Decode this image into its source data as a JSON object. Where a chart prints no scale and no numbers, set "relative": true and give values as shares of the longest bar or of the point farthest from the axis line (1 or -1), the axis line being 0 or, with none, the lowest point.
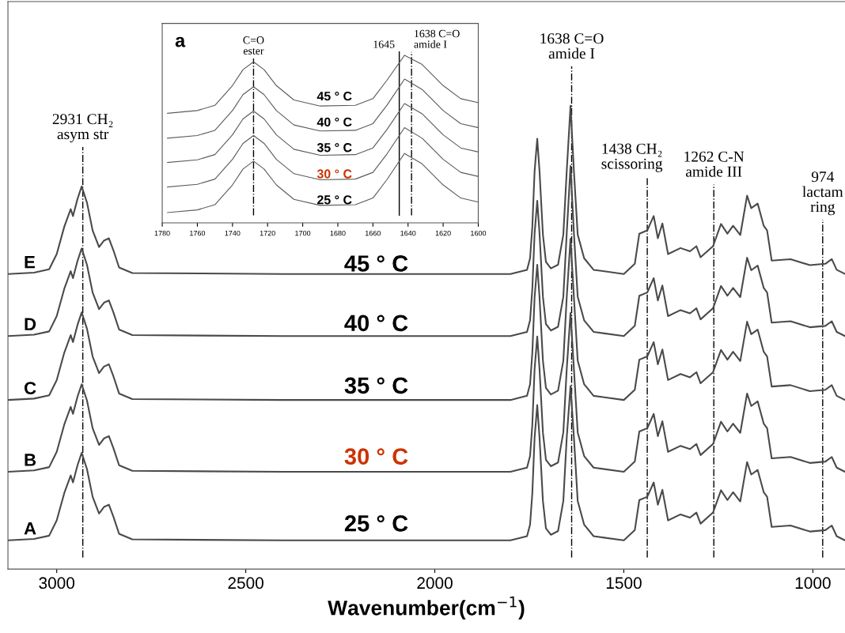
{
  "chart_data": [
    {
      "type": "line",
      "relative": true,
      "xlabel": "Wavenumber(cm$^{−1}$)",
      "xlim": [
        3129,
        915
      ],
      "xticks": [
        3000,
        2500,
        2000,
        1500,
        1000
      ],
      "tick_labels": "x",
      "x": [
        3129,
        3060,
        3020,
        3000,
        2980,
        2963,
        2957,
        2945,
        2934,
        2920,
        2905,
        2888,
        2875,
        2862,
        2850,
        2835,
        2800,
        2400,
        1800,
        1756,
        1748,
        1742,
        1736,
        1729,
        1723,
        1714,
        1706,
        1693,
        1674,
        1660,
        1651,
        1641,
        1632,
        1622,
        1605,
        1580,
        1500,
        1471,
        1459,
        1438,
        1421,
        1410,
        1398,
        1383,
        1350,
        1325,
        1308,
        1297,
        1264,
        1243,
        1226,
        1211,
        1192,
        1174,
        1163,
        1146,
        1130,
        1121,
        1109,
        1059,
        1008,
        967,
        950,
        937,
        915
      ],
      "series": [
        {
          "name": "E",
          "color": "#4a4a4a",
          "values": [
            0.637,
            0.64,
            0.647,
            0.68,
            0.739,
            0.777,
            0.762,
            0.799,
            0.826,
            0.791,
            0.731,
            0.695,
            0.709,
            0.714,
            0.688,
            0.651,
            0.639,
            0.637,
            0.637,
            0.646,
            0.671,
            0.739,
            0.859,
            0.929,
            0.859,
            0.722,
            0.663,
            0.649,
            0.657,
            0.722,
            0.859,
            1.0,
            0.859,
            0.722,
            0.671,
            0.646,
            0.637,
            0.659,
            0.724,
            0.731,
            0.762,
            0.714,
            0.746,
            0.68,
            0.693,
            0.686,
            0.697,
            0.673,
            0.697,
            0.745,
            0.724,
            0.741,
            0.721,
            0.806,
            0.779,
            0.789,
            0.741,
            0.731,
            0.666,
            0.669,
            0.656,
            0.659,
            0.669,
            0.646,
            0.637
          ]
        },
        {
          "name": "D",
          "color": "#4a4a4a",
          "values": [
            0.503,
            0.506,
            0.513,
            0.546,
            0.605,
            0.643,
            0.628,
            0.665,
            0.692,
            0.657,
            0.597,
            0.561,
            0.575,
            0.58,
            0.554,
            0.517,
            0.505,
            0.503,
            0.503,
            0.512,
            0.537,
            0.605,
            0.725,
            0.795,
            0.725,
            0.588,
            0.529,
            0.515,
            0.523,
            0.588,
            0.725,
            0.87,
            0.725,
            0.588,
            0.537,
            0.512,
            0.503,
            0.525,
            0.59,
            0.597,
            0.628,
            0.58,
            0.612,
            0.546,
            0.559,
            0.552,
            0.563,
            0.539,
            0.563,
            0.611,
            0.59,
            0.607,
            0.587,
            0.672,
            0.645,
            0.655,
            0.607,
            0.597,
            0.532,
            0.535,
            0.522,
            0.525,
            0.535,
            0.512,
            0.503
          ]
        },
        {
          "name": "C",
          "color": "#4a4a4a",
          "values": [
            0.365,
            0.368,
            0.375,
            0.408,
            0.467,
            0.505,
            0.49,
            0.527,
            0.554,
            0.519,
            0.459,
            0.423,
            0.437,
            0.442,
            0.416,
            0.379,
            0.367,
            0.365,
            0.365,
            0.374,
            0.399,
            0.467,
            0.587,
            0.657,
            0.587,
            0.45,
            0.391,
            0.377,
            0.385,
            0.45,
            0.587,
            0.713,
            0.587,
            0.45,
            0.399,
            0.374,
            0.365,
            0.387,
            0.452,
            0.459,
            0.49,
            0.442,
            0.474,
            0.408,
            0.421,
            0.414,
            0.425,
            0.401,
            0.425,
            0.473,
            0.452,
            0.469,
            0.449,
            0.534,
            0.507,
            0.517,
            0.469,
            0.459,
            0.394,
            0.397,
            0.384,
            0.387,
            0.397,
            0.374,
            0.365
          ]
        },
        {
          "name": "B",
          "color": "#4a4a4a",
          "values": [
            0.21,
            0.213,
            0.22,
            0.253,
            0.312,
            0.35,
            0.335,
            0.372,
            0.399,
            0.364,
            0.304,
            0.268,
            0.282,
            0.287,
            0.261,
            0.224,
            0.212,
            0.21,
            0.21,
            0.219,
            0.244,
            0.312,
            0.432,
            0.502,
            0.432,
            0.295,
            0.236,
            0.222,
            0.23,
            0.295,
            0.432,
            0.553,
            0.432,
            0.295,
            0.244,
            0.219,
            0.21,
            0.232,
            0.297,
            0.304,
            0.335,
            0.287,
            0.319,
            0.253,
            0.266,
            0.259,
            0.27,
            0.246,
            0.27,
            0.318,
            0.297,
            0.314,
            0.294,
            0.379,
            0.352,
            0.362,
            0.314,
            0.304,
            0.239,
            0.242,
            0.229,
            0.232,
            0.242,
            0.219,
            0.21
          ]
        },
        {
          "name": "A",
          "color": "#4a4a4a",
          "values": [
            0.062,
            0.065,
            0.072,
            0.105,
            0.164,
            0.202,
            0.187,
            0.224,
            0.251,
            0.216,
            0.156,
            0.12,
            0.134,
            0.139,
            0.113,
            0.076,
            0.064,
            0.062,
            0.062,
            0.071,
            0.096,
            0.164,
            0.284,
            0.354,
            0.284,
            0.147,
            0.088,
            0.074,
            0.082,
            0.147,
            0.284,
            0.395,
            0.284,
            0.147,
            0.096,
            0.071,
            0.062,
            0.084,
            0.149,
            0.156,
            0.187,
            0.139,
            0.171,
            0.105,
            0.118,
            0.111,
            0.122,
            0.098,
            0.122,
            0.17,
            0.149,
            0.166,
            0.146,
            0.231,
            0.204,
            0.214,
            0.166,
            0.156,
            0.091,
            0.094,
            0.081,
            0.084,
            0.094,
            0.071,
            0.062
          ]
        }
      ],
      "ref_lines": [
        {
          "axis": "x",
          "value": 2931,
          "label": "2931 CH₂\nasym str",
          "line_style": "dashdot",
          "color": "#000000"
        },
        {
          "axis": "x",
          "value": 1638,
          "label": "1638 C=O\namide I",
          "line_style": "dashdot",
          "color": "#000000"
        },
        {
          "axis": "x",
          "value": 1438,
          "label": "1438 CH₂\nscissoring",
          "line_style": "dashdot",
          "color": "#000000"
        },
        {
          "axis": "x",
          "value": 1262,
          "label": "1262 C-N\namide III",
          "line_style": "dashdot",
          "color": "#000000"
        },
        {
          "axis": "x",
          "value": 974,
          "label": "974\nlactam\nring",
          "line_style": "dashdot",
          "color": "#000000"
        }
      ],
      "annotations": [
        "45 ° C",
        "40 ° C",
        "35 ° C",
        "30 ° C",
        "25 ° C"
      ]
    },
    {
      "type": "line",
      "relative": true,
      "xlim": [
        1780,
        1600
      ],
      "xticks": [
        1780,
        1760,
        1740,
        1720,
        1700,
        1680,
        1660,
        1640,
        1620,
        1600
      ],
      "tick_labels": "x",
      "x": [
        1777,
        1760,
        1750,
        1740,
        1734,
        1728,
        1722,
        1715,
        1705,
        1690,
        1670,
        1660,
        1652,
        1642,
        1632,
        1620,
        1610,
        1600
      ],
      "series": [
        {
          "color": "#5a5a5a",
          "values": [
            0.654,
            0.67,
            0.701,
            0.819,
            0.914,
            0.961,
            0.914,
            0.819,
            0.733,
            0.697,
            0.701,
            0.741,
            0.851,
            1.0,
            0.945,
            0.819,
            0.741,
            0.717
          ]
        },
        {
          "color": "#5a5a5a",
          "values": [
            0.505,
            0.521,
            0.552,
            0.67,
            0.765,
            0.812,
            0.765,
            0.67,
            0.584,
            0.548,
            0.552,
            0.592,
            0.702,
            0.858,
            0.796,
            0.67,
            0.592,
            0.568
          ]
        },
        {
          "color": "#5a5a5a",
          "values": [
            0.36,
            0.376,
            0.407,
            0.525,
            0.62,
            0.667,
            0.62,
            0.525,
            0.439,
            0.403,
            0.407,
            0.447,
            0.557,
            0.712,
            0.651,
            0.525,
            0.447,
            0.423
          ]
        },
        {
          "color": "#5a5a5a",
          "values": [
            0.214,
            0.23,
            0.261,
            0.379,
            0.474,
            0.521,
            0.474,
            0.379,
            0.293,
            0.257,
            0.261,
            0.301,
            0.411,
            0.568,
            0.505,
            0.379,
            0.301,
            0.277
          ]
        },
        {
          "color": "#5a5a5a",
          "values": [
            0.061,
            0.077,
            0.108,
            0.226,
            0.321,
            0.368,
            0.321,
            0.226,
            0.14,
            0.104,
            0.108,
            0.148,
            0.258,
            0.414,
            0.352,
            0.226,
            0.148,
            0.124
          ]
        }
      ],
      "ref_lines": [
        {
          "axis": "x",
          "value": 1728,
          "label": "C=O\nester",
          "line_style": "dashdot",
          "color": "#000000"
        },
        {
          "axis": "x",
          "value": 1645,
          "label": "1645",
          "line_style": "solid",
          "color": "#000000"
        },
        {
          "axis": "x",
          "value": 1638,
          "label": "1638 C=O\namide I",
          "line_style": "dashdot",
          "color": "#000000"
        }
      ],
      "annotations": [
        "a",
        "45 ° C",
        "40 ° C",
        "35 ° C",
        "30 ° C",
        "25 ° C"
      ]
    }
  ]
}
